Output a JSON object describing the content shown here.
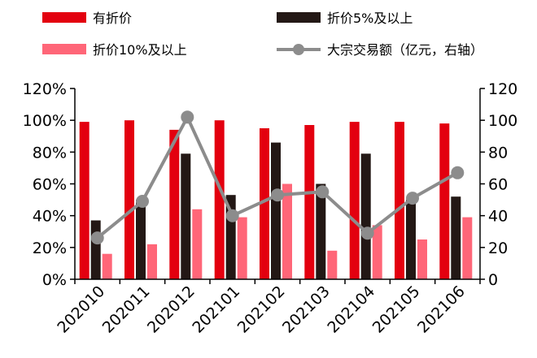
{
  "chart_data": {
    "type": "bar",
    "categories": [
      "202010",
      "202011",
      "202012",
      "202101",
      "202102",
      "202103",
      "202104",
      "202105",
      "202106"
    ],
    "series": [
      {
        "name": "有折价",
        "kind": "bar",
        "axis": "left",
        "color": "#e3000f",
        "values": [
          99,
          100,
          94,
          100,
          95,
          97,
          99,
          99,
          98
        ]
      },
      {
        "name": "折价5%及以上",
        "kind": "bar",
        "axis": "left",
        "color": "#231815",
        "values": [
          37,
          50,
          79,
          53,
          86,
          60,
          79,
          50,
          52
        ]
      },
      {
        "name": "折价10%及以上",
        "kind": "bar",
        "axis": "left",
        "color": "#ff6678",
        "values": [
          16,
          22,
          44,
          39,
          60,
          18,
          34,
          25,
          39
        ]
      },
      {
        "name": "大宗交易额（亿元，右轴）",
        "kind": "line",
        "axis": "right",
        "color": "#8c8c8c",
        "values": [
          26,
          49,
          102,
          40,
          53,
          55,
          29,
          51,
          67
        ]
      }
    ],
    "y_left": {
      "ylim": [
        0,
        120
      ],
      "ticks": [
        "0%",
        "20%",
        "40%",
        "60%",
        "80%",
        "100%",
        "120%"
      ]
    },
    "y_right": {
      "ylim": [
        0,
        120
      ],
      "ticks": [
        "0",
        "20",
        "40",
        "60",
        "80",
        "100",
        "120"
      ]
    },
    "grid": false,
    "legend_position": "top"
  }
}
